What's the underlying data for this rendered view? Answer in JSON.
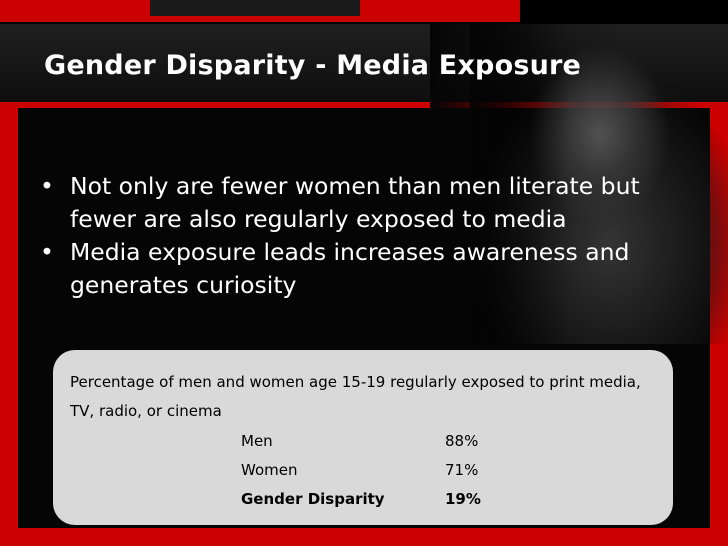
{
  "slide": {
    "title": "Gender Disparity - Media Exposure",
    "bullets": [
      "Not only are fewer women than men literate but fewer are also regularly exposed to media",
      "Media exposure leads increases awareness and generates curiosity"
    ],
    "bullet_glyph": "•",
    "stats": {
      "caption": "Percentage of men and women age 15-19 regularly exposed to print media, TV, radio, or cinema",
      "rows": [
        {
          "label": "Men",
          "value": "88%"
        },
        {
          "label": "Women",
          "value": "71%"
        },
        {
          "label": "Gender Disparity",
          "value": "19%"
        }
      ]
    },
    "colors": {
      "accent_red": "#cc0000",
      "background": "#000000",
      "box_fill": "#d9d9d9"
    }
  }
}
